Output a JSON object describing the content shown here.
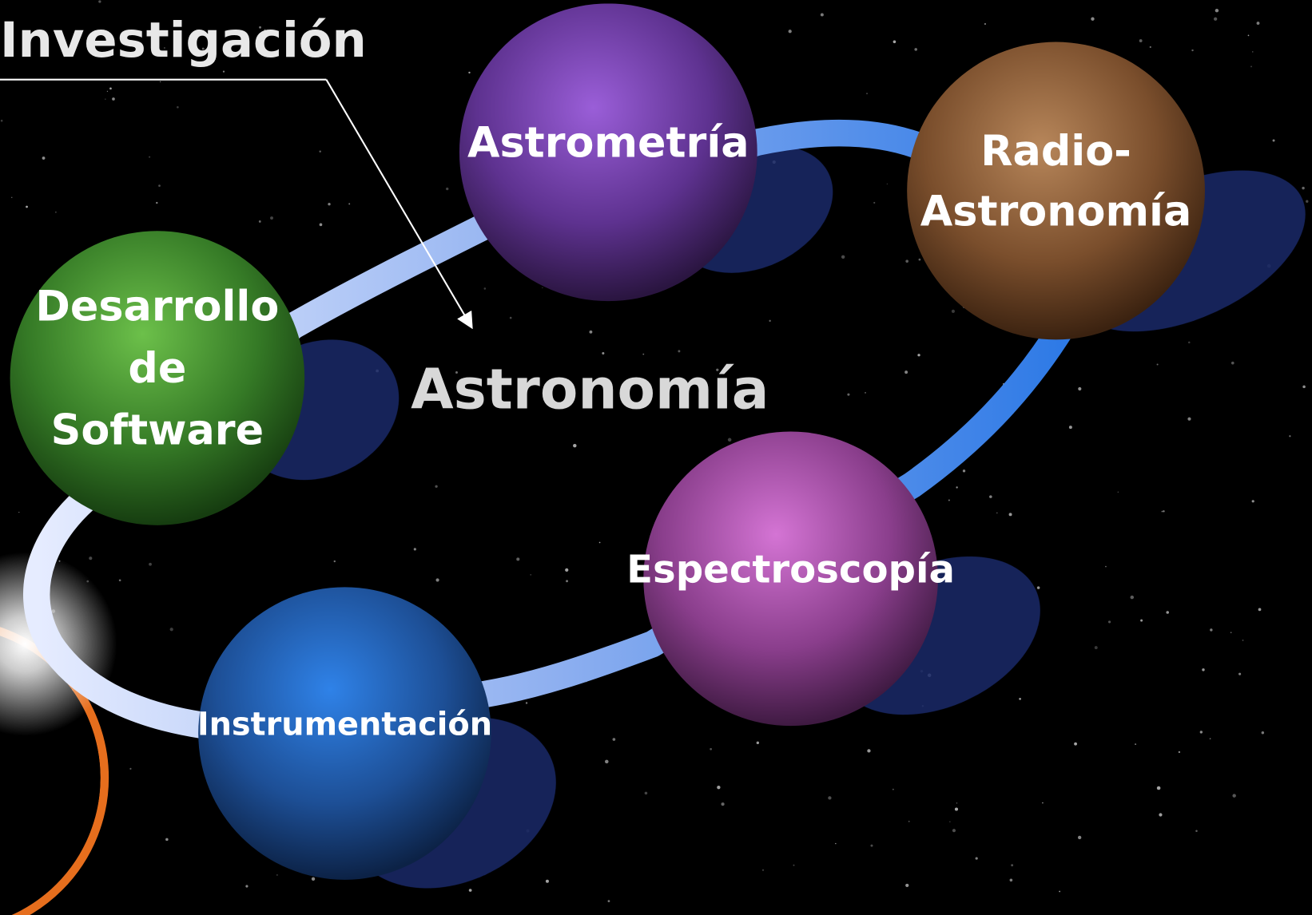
{
  "title": "Investigación",
  "center": "Astronomía",
  "nodes": [
    {
      "lines": [
        "Astrometría"
      ]
    },
    {
      "lines": [
        "Radio-",
        "Astronomía"
      ]
    },
    {
      "lines": [
        "Desarrollo",
        "de",
        "Software"
      ]
    },
    {
      "lines": [
        "Espectroscopía"
      ]
    },
    {
      "lines": [
        "Instrumentación"
      ]
    }
  ]
}
